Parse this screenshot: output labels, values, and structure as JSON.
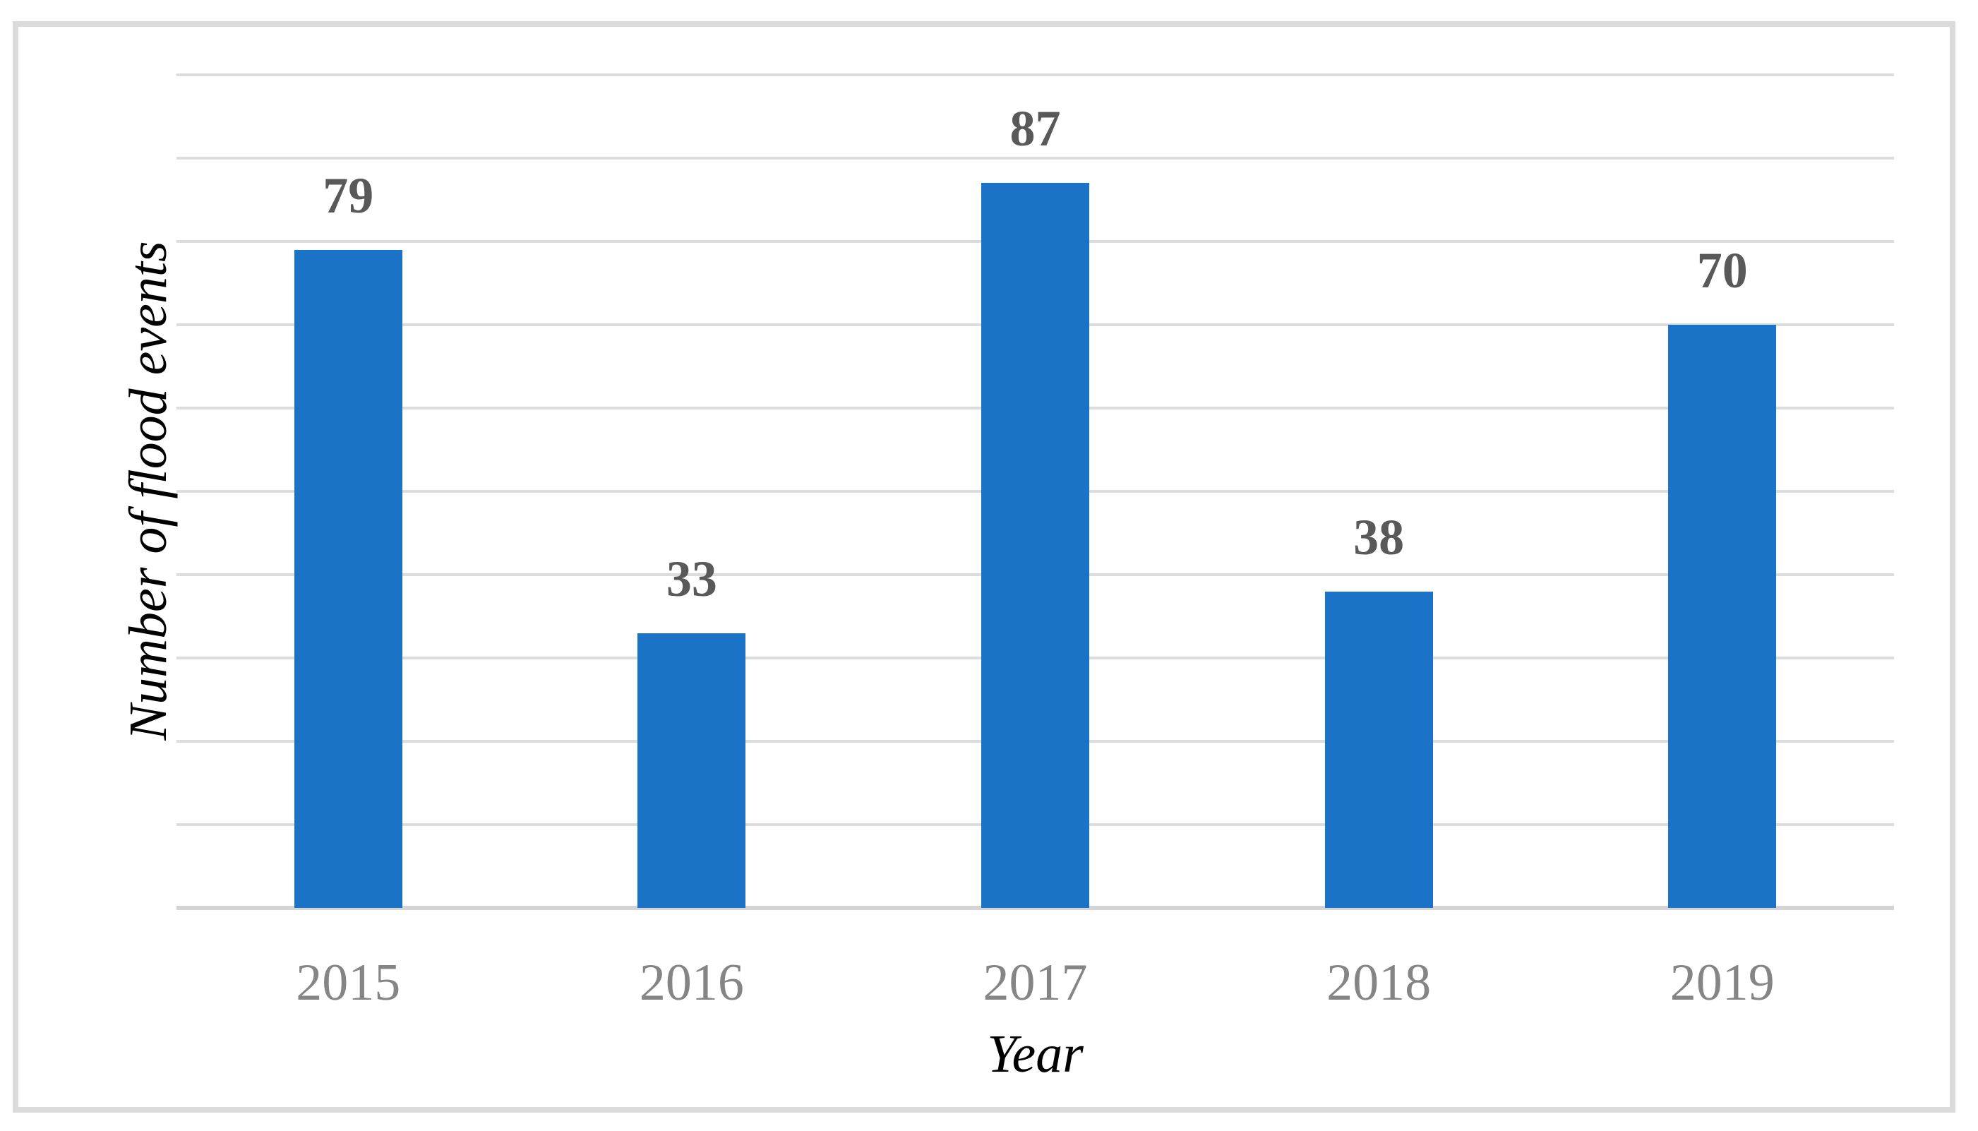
{
  "figure": {
    "background": "#FFFFFF",
    "description": "Bar chart of number of flood events per year, 2015-2019"
  },
  "colors": {
    "bar": "#1B73C7",
    "gridline": "#DCDCDC",
    "axis_line": "#D4D4D4",
    "frame_border": "#DBDBDB",
    "value_label": "#595959",
    "tick_label": "#858585",
    "axis_title": "#000000"
  },
  "chart_data": {
    "type": "bar",
    "categories": [
      "2015",
      "2016",
      "2017",
      "2018",
      "2019"
    ],
    "values": [
      79,
      33,
      87,
      38,
      70
    ],
    "title": "",
    "xlabel": "Year",
    "ylabel": "Number of flood events",
    "ylim": [
      0,
      100
    ],
    "gridline_step": 10,
    "grid": "horizontal-only",
    "legend": "none",
    "data_labels": true,
    "bar_color": "#1B73C7"
  }
}
